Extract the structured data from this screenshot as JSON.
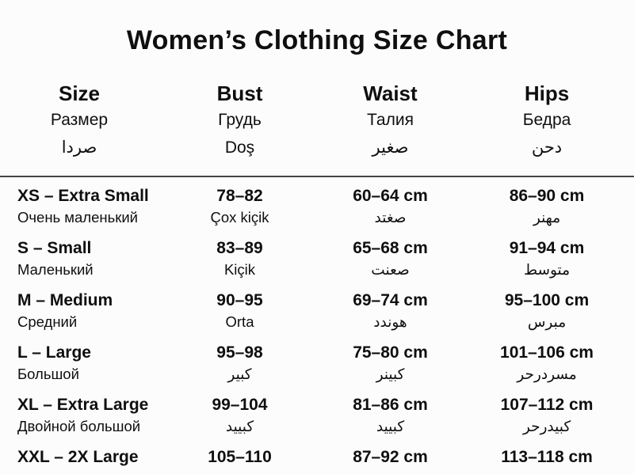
{
  "page": {
    "title": "Women’s Clothing Size Chart",
    "background_color": "#fcfcfc",
    "text_color": "#0f0f0f",
    "divider_color": "#454545"
  },
  "header": {
    "columns": [
      {
        "primary": "Size",
        "secondary": "Размер",
        "tertiary": "صردا"
      },
      {
        "primary": "Bust",
        "secondary": "Грудь",
        "tertiary": "Doş"
      },
      {
        "primary": "Waist",
        "secondary": "Талия",
        "tertiary": "صغير"
      },
      {
        "primary": "Hips",
        "secondary": "Бедра",
        "tertiary": "دحن"
      }
    ]
  },
  "rows": [
    {
      "size": "XS – Extra Small",
      "size_sub": "Очень маленький",
      "bust": "78–82",
      "bust_sub": "Çox kiçik",
      "waist": "60–64 cm",
      "waist_sub": "صغتد",
      "hips": "86–90 cm",
      "hips_sub": "مهنر"
    },
    {
      "size": "S – Small",
      "size_sub": "Маленький",
      "bust": "83–89",
      "bust_sub": "Kiçik",
      "waist": "65–68 cm",
      "waist_sub": "صعنت",
      "hips": "91–94 cm",
      "hips_sub": "متوسط"
    },
    {
      "size": "M – Medium",
      "size_sub": "Средний",
      "bust": "90–95",
      "bust_sub": "Orta",
      "waist": "69–74 cm",
      "waist_sub": "هوندد",
      "hips": "95–100 cm",
      "hips_sub": "مبرس"
    },
    {
      "size": "L – Large",
      "size_sub": "Большой",
      "bust": "95–98",
      "bust_sub": "كبير",
      "waist": "75–80 cm",
      "waist_sub": "كبينر",
      "hips": "101–106 cm",
      "hips_sub": "مسردرحر"
    },
    {
      "size": "XL – Extra Large",
      "size_sub": "Двойной большой",
      "bust": "99–104",
      "bust_sub": "كبييد",
      "waist": "81–86 cm",
      "waist_sub": "كبييد",
      "hips": "107–112 cm",
      "hips_sub": "كبيدرحر"
    },
    {
      "size": "XXL – 2X Large",
      "size_sub": "",
      "bust": "105–110",
      "bust_sub": "",
      "waist": "87–92 cm",
      "waist_sub": "",
      "hips": "113–118 cm",
      "hips_sub": ""
    }
  ],
  "chart_data": {
    "type": "table",
    "title": "Women’s Clothing Size Chart",
    "columns": [
      "Size",
      "Bust",
      "Waist",
      "Hips"
    ],
    "column_subtitles": [
      [
        "Размер",
        "صردا"
      ],
      [
        "Грудь",
        "Doş"
      ],
      [
        "Талия",
        "صغير"
      ],
      [
        "Бедра",
        "دحن"
      ]
    ],
    "rows": [
      [
        "XS – Extra Small",
        "78–82",
        "60–64 cm",
        "86–90 cm"
      ],
      [
        "S – Small",
        "83–89",
        "65–68 cm",
        "91–94 cm"
      ],
      [
        "M – Medium",
        "90–95",
        "69–74 cm",
        "95–100 cm"
      ],
      [
        "L – Large",
        "95–98",
        "75–80 cm",
        "101–106 cm"
      ],
      [
        "XL – Extra Large",
        "99–104",
        "81–86 cm",
        "107–112 cm"
      ],
      [
        "XXL – 2X Large",
        "105–110",
        "87–92 cm",
        "113–118 cm"
      ]
    ]
  }
}
